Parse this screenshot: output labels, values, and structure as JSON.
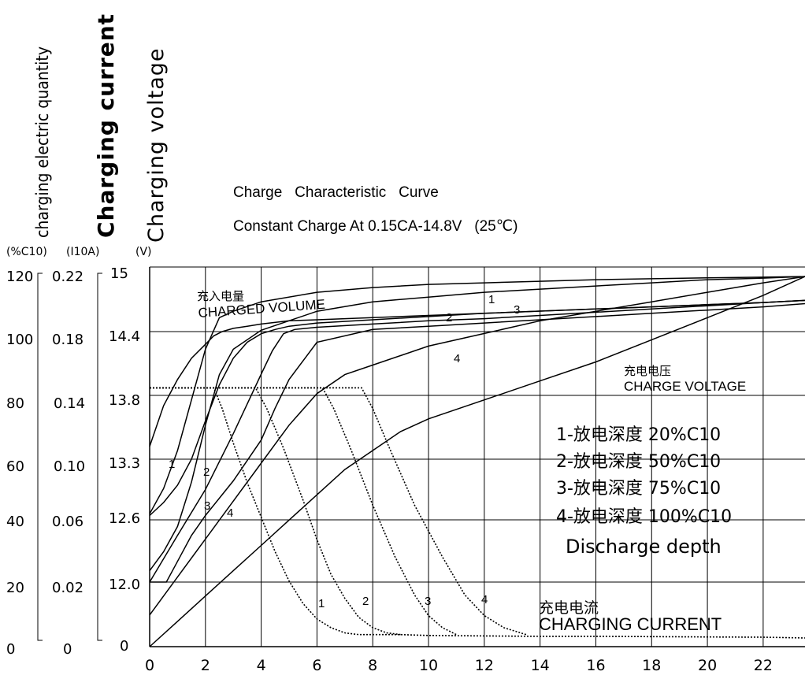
{
  "axis_labels": {
    "quantity": "charging electric quantity",
    "current": "Charging current",
    "voltage": "Charging voltage",
    "quantity_unit": "(%C10)",
    "current_unit": "(I10A)",
    "voltage_unit": "(V)"
  },
  "chart_data": {
    "type": "line",
    "title": "Charge   Characteristic   Curve",
    "subtitle": "Constant Charge At 0.15CA-14.8V   (25℃)",
    "xlabel": "",
    "x_ticks": [
      "0",
      "2",
      "4",
      "6",
      "8",
      "10",
      "12",
      "14",
      "16",
      "18",
      "20",
      "22"
    ],
    "xlim": [
      0,
      23.5
    ],
    "grid": true,
    "y_axes": [
      {
        "name": "charged_quantity",
        "ticks": [
          "120",
          "100",
          "80",
          "60",
          "40",
          "20",
          "0"
        ],
        "ylim": [
          0,
          120
        ]
      },
      {
        "name": "charging_current",
        "ticks": [
          "0.22",
          "0.18",
          "0.14",
          "0.10",
          "0.06",
          "0.02",
          "0"
        ],
        "ylim": [
          0,
          0.22
        ]
      },
      {
        "name": "charging_voltage",
        "ticks": [
          "15",
          "14.4",
          "13.8",
          "13.3",
          "12.6",
          "12.0",
          "0"
        ]
      }
    ],
    "annotations": {
      "charged_volume_cn": "充入电量",
      "charged_volume": "CHARGED VOLUME",
      "charge_voltage_cn": "充电电压",
      "charge_voltage": "CHARGE VOLTAGE",
      "charging_current_cn": "充电电流",
      "charging_current": "CHARGING CURRENT"
    },
    "curve_labels": [
      "1",
      "2",
      "3",
      "4"
    ],
    "series": [
      {
        "group": "charged_volume",
        "label": "1",
        "x": [
          0,
          0.5,
          1,
          1.5,
          2,
          2.5,
          3,
          4,
          6,
          8,
          10,
          12,
          14,
          16,
          18,
          20,
          22,
          23.5
        ],
        "y": [
          42,
          50,
          62,
          78,
          94,
          104,
          106,
          109,
          112,
          113.5,
          114.5,
          115,
          115.5,
          116,
          116.3,
          116.6,
          116.8,
          117
        ]
      },
      {
        "group": "charged_volume",
        "label": "2",
        "x": [
          0,
          0.5,
          1,
          1.5,
          2,
          2.5,
          3,
          4,
          6,
          8,
          10,
          12,
          14,
          16,
          18,
          20,
          22,
          23.5
        ],
        "y": [
          24,
          30,
          38,
          52,
          70,
          86,
          94,
          100,
          106,
          109,
          110.5,
          112,
          113,
          114,
          115,
          116,
          116.5,
          117
        ]
      },
      {
        "group": "charged_volume",
        "label": "3",
        "x": [
          0,
          0.5,
          1,
          2,
          3,
          4,
          5,
          6,
          7,
          8,
          10,
          12,
          14,
          16,
          18,
          20,
          22,
          23.5
        ],
        "y": [
          10,
          16,
          22,
          34,
          46,
          58,
          70,
          80,
          86,
          89,
          95,
          99,
          103,
          106,
          109,
          112,
          115,
          117
        ]
      },
      {
        "group": "charged_volume",
        "label": "4",
        "x": [
          0,
          1,
          2,
          3,
          4,
          5,
          6,
          7,
          8,
          9,
          10,
          12,
          14,
          16,
          18,
          20,
          22,
          23.5
        ],
        "y": [
          0,
          8,
          16,
          24,
          32,
          40,
          48,
          56,
          62,
          68,
          72,
          78,
          84,
          90,
          97,
          104,
          111,
          117
        ]
      },
      {
        "group": "charging_voltage",
        "label": "1",
        "x": [
          0,
          0.5,
          1,
          1.5,
          2,
          2.3,
          2.6,
          3,
          3.5,
          4,
          5,
          6,
          8,
          10,
          12,
          14,
          16,
          18,
          20,
          22,
          23.5
        ],
        "y": [
          13.4,
          13.72,
          13.95,
          14.15,
          14.28,
          14.36,
          14.4,
          14.43,
          14.45,
          14.47,
          14.5,
          14.51,
          14.53,
          14.55,
          14.57,
          14.59,
          14.61,
          14.63,
          14.65,
          14.67,
          14.69
        ]
      },
      {
        "group": "charging_voltage",
        "label": "2",
        "x": [
          0,
          0.5,
          1,
          1.5,
          2,
          2.5,
          3,
          3.5,
          4,
          4.5,
          5,
          6,
          8,
          10,
          12,
          14,
          16,
          18,
          20,
          22,
          23.5
        ],
        "y": [
          12.65,
          12.8,
          13.0,
          13.3,
          13.6,
          13.9,
          14.15,
          14.3,
          14.38,
          14.42,
          14.45,
          14.48,
          14.51,
          14.54,
          14.57,
          14.59,
          14.61,
          14.63,
          14.65,
          14.67,
          14.69
        ]
      },
      {
        "group": "charging_voltage",
        "label": "3",
        "x": [
          0,
          1,
          2,
          3,
          4,
          4.4,
          4.8,
          5.2,
          6,
          8,
          10,
          12,
          14,
          16,
          18,
          20,
          22,
          23.5
        ],
        "y": [
          12.0,
          12.45,
          12.95,
          13.5,
          14.0,
          14.22,
          14.38,
          14.42,
          14.44,
          14.47,
          14.5,
          14.52,
          14.55,
          14.58,
          14.61,
          14.64,
          14.67,
          14.69
        ]
      },
      {
        "group": "charging_voltage",
        "label": "4",
        "x": [
          0,
          0.3,
          0.6,
          1,
          1.5,
          2,
          2.5,
          3,
          4,
          4.5,
          5,
          6,
          8,
          10,
          12,
          14,
          16,
          18,
          20,
          22,
          23.5
        ],
        "y": [
          11.0,
          11.55,
          11.95,
          12.2,
          12.45,
          12.65,
          12.85,
          13.05,
          13.45,
          13.7,
          13.95,
          14.3,
          14.42,
          14.45,
          14.48,
          14.51,
          14.54,
          14.57,
          14.6,
          14.63,
          14.66
        ]
      },
      {
        "group": "charging_current",
        "label": "1",
        "x": [
          0,
          2.3,
          2.6,
          3,
          3.5,
          4,
          4.5,
          5,
          5.5,
          6,
          6.5,
          7,
          7.5,
          8,
          9,
          10,
          12,
          14,
          16,
          18,
          20,
          22,
          23.5
        ],
        "y": [
          0.15,
          0.15,
          0.138,
          0.118,
          0.095,
          0.075,
          0.055,
          0.038,
          0.025,
          0.016,
          0.011,
          0.008,
          0.007,
          0.007,
          0.007,
          0.0065,
          0.0062,
          0.006,
          0.006,
          0.0058,
          0.0056,
          0.0055,
          0.005
        ]
      },
      {
        "group": "charging_current",
        "label": "2",
        "x": [
          0,
          3.8,
          4.2,
          4.8,
          5.5,
          6,
          6.5,
          7,
          7.5,
          8,
          8.5,
          9
        ],
        "y": [
          0.15,
          0.15,
          0.138,
          0.115,
          0.085,
          0.062,
          0.042,
          0.028,
          0.017,
          0.011,
          0.008,
          0.007
        ]
      },
      {
        "group": "charging_current",
        "label": "3",
        "x": [
          0,
          6.2,
          6.6,
          7.2,
          8,
          8.8,
          9.5,
          10,
          10.5,
          11
        ],
        "y": [
          0.15,
          0.15,
          0.138,
          0.115,
          0.082,
          0.052,
          0.03,
          0.018,
          0.011,
          0.007
        ]
      },
      {
        "group": "charging_current",
        "label": "4",
        "x": [
          0,
          7.6,
          8,
          8.6,
          9.5,
          10.5,
          11.3,
          12,
          12.7,
          13.5
        ],
        "y": [
          0.15,
          0.15,
          0.138,
          0.115,
          0.082,
          0.052,
          0.03,
          0.018,
          0.011,
          0.007
        ]
      }
    ]
  },
  "legend": {
    "items": [
      "1-放电深度 20%C10",
      "2-放电深度 50%C10",
      "3-放电深度 75%C10",
      "4-放电深度 100%C10"
    ],
    "footer": "Discharge depth"
  }
}
